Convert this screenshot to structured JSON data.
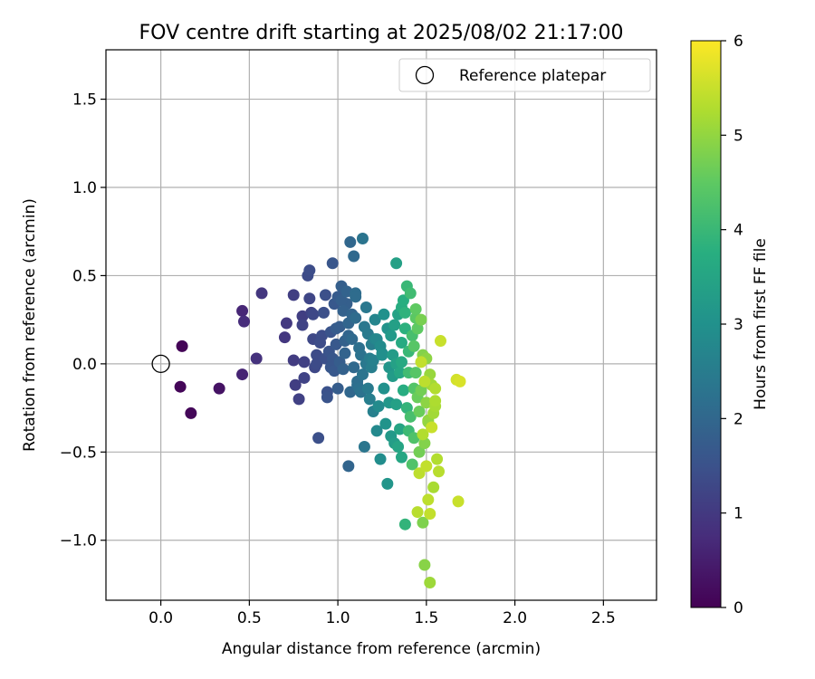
{
  "chart_data": {
    "type": "scatter",
    "title": "FOV centre drift starting at 2025/08/02 21:17:00",
    "xlabel": "Angular distance from reference (arcmin)",
    "ylabel": "Rotation from reference (arcmin)",
    "xlim": [
      -0.31,
      2.8
    ],
    "ylim": [
      -1.34,
      1.78
    ],
    "xticks": [
      0.0,
      0.5,
      1.0,
      1.5,
      2.0,
      2.5
    ],
    "xtick_labels": [
      "0.0",
      "0.5",
      "1.0",
      "1.5",
      "2.0",
      "2.5"
    ],
    "yticks": [
      -1.0,
      -0.5,
      0.0,
      0.5,
      1.0,
      1.5
    ],
    "ytick_labels": [
      "−1.0",
      "−0.5",
      "0.0",
      "0.5",
      "1.0",
      "1.5"
    ],
    "grid": true,
    "legend": {
      "position": "top-right",
      "entries": [
        "Reference platepar"
      ]
    },
    "reference_point": {
      "x": 0.0,
      "y": 0.0
    },
    "colorbar": {
      "label": "Hours from first FF file",
      "min": 0,
      "max": 6,
      "ticks": [
        0,
        1,
        2,
        3,
        4,
        5,
        6
      ],
      "tick_labels": [
        "0",
        "1",
        "2",
        "3",
        "4",
        "5",
        "6"
      ],
      "colormap": "viridis"
    },
    "points": [
      [
        0.12,
        0.1,
        0.05
      ],
      [
        0.11,
        -0.13,
        0.08
      ],
      [
        0.17,
        -0.28,
        0.1
      ],
      [
        0.33,
        -0.14,
        0.3
      ],
      [
        0.46,
        0.3,
        0.65
      ],
      [
        0.47,
        0.24,
        0.75
      ],
      [
        0.46,
        -0.06,
        0.6
      ],
      [
        0.54,
        0.03,
        0.85
      ],
      [
        0.57,
        0.4,
        0.95
      ],
      [
        0.7,
        0.15,
        0.95
      ],
      [
        0.71,
        0.23,
        1.0
      ],
      [
        0.75,
        0.39,
        1.1
      ],
      [
        0.75,
        0.02,
        1.05
      ],
      [
        0.76,
        -0.12,
        1.1
      ],
      [
        0.78,
        -0.2,
        1.15
      ],
      [
        0.8,
        0.27,
        1.1
      ],
      [
        0.8,
        0.22,
        1.2
      ],
      [
        0.81,
        0.01,
        1.15
      ],
      [
        0.81,
        -0.08,
        1.2
      ],
      [
        0.83,
        0.5,
        1.35
      ],
      [
        0.84,
        0.53,
        1.4
      ],
      [
        0.84,
        0.37,
        1.25
      ],
      [
        0.85,
        0.29,
        1.2
      ],
      [
        0.86,
        0.14,
        1.3
      ],
      [
        0.87,
        -0.02,
        1.3
      ],
      [
        0.88,
        0.05,
        1.35
      ],
      [
        0.89,
        -0.42,
        1.45
      ],
      [
        0.91,
        0.16,
        1.4
      ],
      [
        0.93,
        0.39,
        1.45
      ],
      [
        0.94,
        -0.16,
        1.5
      ],
      [
        0.94,
        -0.19,
        1.55
      ],
      [
        0.96,
        0.18,
        1.55
      ],
      [
        0.97,
        0.57,
        1.6
      ],
      [
        0.97,
        0.03,
        1.6
      ],
      [
        0.98,
        0.34,
        1.65
      ],
      [
        0.99,
        0.11,
        1.65
      ],
      [
        1.0,
        0.38,
        1.7
      ],
      [
        1.0,
        -0.14,
        1.75
      ],
      [
        1.01,
        0.21,
        1.75
      ],
      [
        1.02,
        0.44,
        1.8
      ],
      [
        1.03,
        0.3,
        1.85
      ],
      [
        1.03,
        -0.03,
        1.85
      ],
      [
        1.04,
        0.06,
        1.9
      ],
      [
        1.05,
        0.41,
        1.9
      ],
      [
        1.06,
        0.23,
        1.95
      ],
      [
        1.06,
        -0.58,
        1.95
      ],
      [
        1.07,
        0.69,
        2.0
      ],
      [
        1.07,
        -0.16,
        2.0
      ],
      [
        1.08,
        0.14,
        2.05
      ],
      [
        1.09,
        0.61,
        2.05
      ],
      [
        1.1,
        0.26,
        2.1
      ],
      [
        1.1,
        0.4,
        2.1
      ],
      [
        1.11,
        -0.12,
        2.15
      ],
      [
        1.12,
        0.09,
        2.2
      ],
      [
        1.13,
        -0.16,
        2.25
      ],
      [
        1.14,
        0.71,
        2.3
      ],
      [
        1.15,
        -0.47,
        2.35
      ],
      [
        1.16,
        0.32,
        2.4
      ],
      [
        1.17,
        -0.14,
        2.45
      ],
      [
        1.18,
        0.03,
        2.5
      ],
      [
        1.19,
        0.11,
        2.55
      ],
      [
        1.2,
        -0.27,
        2.6
      ],
      [
        1.21,
        0.25,
        2.7
      ],
      [
        1.22,
        0.14,
        2.75
      ],
      [
        1.23,
        -0.24,
        2.85
      ],
      [
        1.24,
        -0.54,
        2.9
      ],
      [
        1.25,
        0.05,
        2.95
      ],
      [
        1.26,
        0.28,
        3.0
      ],
      [
        1.27,
        -0.34,
        3.05
      ],
      [
        1.28,
        -0.68,
        3.1
      ],
      [
        1.29,
        -0.22,
        3.15
      ],
      [
        1.3,
        0.16,
        3.2
      ],
      [
        1.31,
        -0.07,
        3.25
      ],
      [
        1.32,
        -0.45,
        3.3
      ],
      [
        1.33,
        0.57,
        3.4
      ],
      [
        1.34,
        0.28,
        3.45
      ],
      [
        1.35,
        -0.37,
        3.5
      ],
      [
        1.36,
        -0.53,
        3.55
      ],
      [
        1.36,
        0.01,
        3.6
      ],
      [
        1.37,
        -0.15,
        3.7
      ],
      [
        1.38,
        0.2,
        3.8
      ],
      [
        1.38,
        -0.91,
        3.9
      ],
      [
        1.39,
        0.44,
        4.0
      ],
      [
        1.4,
        -0.05,
        4.1
      ],
      [
        1.41,
        -0.3,
        4.2
      ],
      [
        1.42,
        -0.57,
        4.3
      ],
      [
        1.43,
        0.1,
        4.4
      ],
      [
        1.44,
        0.31,
        4.5
      ],
      [
        1.45,
        -0.19,
        4.6
      ],
      [
        1.46,
        -0.5,
        4.7
      ],
      [
        1.47,
        0.25,
        4.75
      ],
      [
        1.48,
        -0.9,
        4.8
      ],
      [
        1.49,
        -1.14,
        4.9
      ],
      [
        1.5,
        0.03,
        4.95
      ],
      [
        1.51,
        -0.32,
        5.0
      ],
      [
        1.52,
        -1.24,
        5.1
      ],
      [
        1.53,
        -0.12,
        5.15
      ],
      [
        1.54,
        -0.7,
        5.2
      ],
      [
        1.55,
        -0.21,
        5.25
      ],
      [
        1.56,
        -0.54,
        5.3
      ],
      [
        1.57,
        -0.61,
        5.35
      ],
      [
        1.58,
        0.13,
        5.5
      ],
      [
        1.52,
        -0.85,
        5.45
      ],
      [
        1.51,
        -0.77,
        5.4
      ],
      [
        1.5,
        -0.58,
        5.45
      ],
      [
        1.48,
        -0.4,
        5.3
      ],
      [
        1.46,
        -0.62,
        5.4
      ],
      [
        1.45,
        -0.84,
        5.35
      ],
      [
        1.53,
        -0.36,
        5.5
      ],
      [
        1.49,
        -0.1,
        5.4
      ],
      [
        1.55,
        -0.14,
        5.3
      ],
      [
        1.47,
        0.01,
        5.45
      ],
      [
        1.68,
        -0.78,
        5.5
      ],
      [
        1.67,
        -0.09,
        5.6
      ],
      [
        1.69,
        -0.1,
        5.65
      ],
      [
        1.05,
        0.34,
        1.8
      ],
      [
        1.08,
        0.28,
        1.95
      ],
      [
        1.12,
        -0.14,
        2.2
      ],
      [
        1.15,
        0.21,
        2.4
      ],
      [
        1.18,
        -0.2,
        2.55
      ],
      [
        1.22,
        -0.38,
        2.8
      ],
      [
        1.26,
        -0.14,
        3.0
      ],
      [
        1.3,
        -0.41,
        3.2
      ],
      [
        1.33,
        -0.23,
        3.4
      ],
      [
        1.35,
        -0.05,
        3.55
      ],
      [
        1.37,
        0.36,
        3.75
      ],
      [
        1.4,
        0.07,
        4.0
      ],
      [
        1.43,
        -0.42,
        4.3
      ],
      [
        1.44,
        -0.05,
        4.4
      ],
      [
        1.46,
        -0.27,
        4.6
      ],
      [
        1.42,
        0.16,
        4.2
      ],
      [
        1.39,
        -0.25,
        3.9
      ],
      [
        1.36,
        0.12,
        3.65
      ],
      [
        1.34,
        -0.47,
        3.5
      ],
      [
        1.31,
        0.05,
        3.25
      ],
      [
        1.28,
        0.2,
        3.05
      ],
      [
        1.24,
        0.1,
        2.85
      ],
      [
        1.2,
        0.02,
        2.6
      ],
      [
        1.17,
        0.17,
        2.45
      ],
      [
        1.13,
        0.05,
        2.25
      ],
      [
        1.09,
        -0.02,
        2.05
      ],
      [
        1.04,
        0.13,
        1.85
      ],
      [
        1.01,
        0.01,
        1.75
      ],
      [
        0.98,
        -0.04,
        1.65
      ],
      [
        0.95,
        0.07,
        1.55
      ],
      [
        0.92,
        0.29,
        1.45
      ],
      [
        0.9,
        0.12,
        1.4
      ],
      [
        1.11,
        -0.1,
        2.15
      ],
      [
        1.14,
        -0.06,
        2.3
      ],
      [
        1.16,
        0.0,
        2.4
      ],
      [
        1.19,
        -0.02,
        2.55
      ],
      [
        1.21,
        0.14,
        2.7
      ],
      [
        1.25,
        0.06,
        2.9
      ],
      [
        1.29,
        -0.02,
        3.1
      ],
      [
        1.32,
        0.22,
        3.35
      ],
      [
        1.38,
        0.29,
        3.85
      ],
      [
        1.41,
        0.4,
        4.1
      ],
      [
        1.45,
        0.2,
        4.5
      ],
      [
        1.47,
        -0.15,
        4.7
      ],
      [
        1.5,
        -0.22,
        4.95
      ],
      [
        1.52,
        -0.06,
        5.05
      ],
      [
        1.55,
        -0.24,
        5.2
      ],
      [
        1.49,
        -0.45,
        4.85
      ],
      [
        1.43,
        -0.14,
        4.35
      ],
      [
        1.4,
        -0.38,
        4.05
      ],
      [
        1.36,
        0.32,
        3.7
      ],
      [
        1.33,
        0.0,
        3.4
      ],
      [
        1.44,
        0.26,
        4.45
      ],
      [
        1.48,
        0.05,
        4.85
      ],
      [
        1.51,
        -0.33,
        5.0
      ],
      [
        1.54,
        -0.28,
        5.15
      ],
      [
        1.02,
        0.36,
        1.8
      ],
      [
        1.06,
        0.16,
        1.95
      ],
      [
        1.1,
        0.38,
        2.1
      ],
      [
        0.99,
        0.2,
        1.7
      ],
      [
        0.96,
        -0.02,
        1.6
      ],
      [
        0.93,
        0.03,
        1.45
      ],
      [
        0.88,
        0.0,
        1.35
      ],
      [
        0.86,
        0.28,
        1.3
      ]
    ]
  }
}
